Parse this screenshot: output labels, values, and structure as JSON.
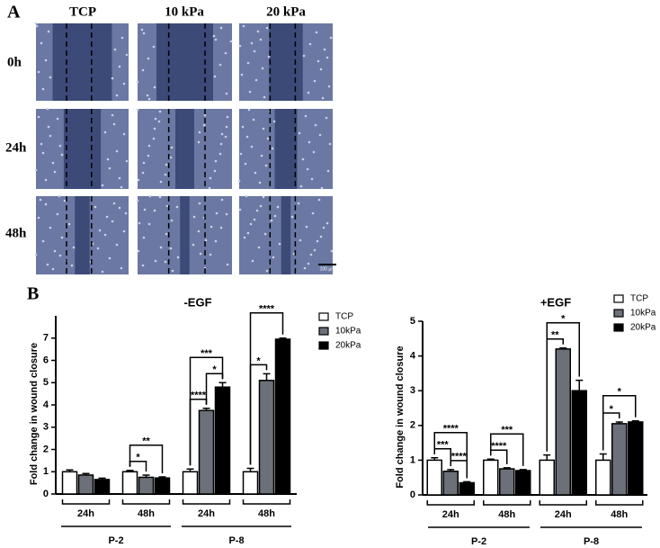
{
  "panel_a": {
    "label": "A",
    "columns": [
      "TCP",
      "10 kPa",
      "20 kPa"
    ],
    "rows": [
      "0h",
      "24h",
      "48h"
    ],
    "scale_bar": "100 µm"
  },
  "panel_b": {
    "label": "B"
  },
  "chart_data": [
    {
      "type": "bar",
      "title": "-EGF",
      "y_label": "Fold change in wound closure",
      "categories": [
        "24h",
        "48h",
        "24h",
        "48h"
      ],
      "groups": [
        "P-2",
        "P-8"
      ],
      "series": [
        {
          "name": "TCP",
          "color": "#ffffff",
          "values": [
            1,
            1,
            1,
            1
          ],
          "errors": [
            0.08,
            0.06,
            0.12,
            0.15
          ]
        },
        {
          "name": "10kPa",
          "color": "#6b7079",
          "values": [
            0.85,
            0.75,
            3.75,
            5.1
          ],
          "errors": [
            0.07,
            0.1,
            0.1,
            0.3
          ]
        },
        {
          "name": "20kPa",
          "color": "#000000",
          "values": [
            0.65,
            0.72,
            4.8,
            6.95
          ],
          "errors": [
            0.06,
            0.05,
            0.2,
            0.05
          ]
        }
      ],
      "ylim": [
        0,
        8
      ],
      "yticks": [
        0,
        1,
        2,
        3,
        4,
        5,
        6,
        7
      ],
      "annotations": [
        "*",
        "**",
        "****",
        "*",
        "***",
        "*",
        "****"
      ]
    },
    {
      "type": "bar",
      "title": "+EGF",
      "y_label": "Fold change in wound closure",
      "categories": [
        "24h",
        "48h",
        "24h",
        "48h"
      ],
      "groups": [
        "P-2",
        "P-8"
      ],
      "series": [
        {
          "name": "TCP",
          "color": "#ffffff",
          "values": [
            1,
            1,
            1,
            1
          ],
          "errors": [
            0.07,
            0.03,
            0.15,
            0.18
          ]
        },
        {
          "name": "10kPa",
          "color": "#6b7079",
          "values": [
            0.68,
            0.75,
            4.2,
            2.05
          ],
          "errors": [
            0.05,
            0.03,
            0.03,
            0.05
          ]
        },
        {
          "name": "20kPa",
          "color": "#000000",
          "values": [
            0.35,
            0.7,
            3,
            2.1
          ],
          "errors": [
            0.03,
            0.03,
            0.3,
            0.03
          ]
        }
      ],
      "ylim": [
        0,
        5
      ],
      "yticks": [
        0,
        1,
        2,
        3,
        4,
        5
      ],
      "annotations": [
        "***",
        "****",
        "****",
        "****",
        "***",
        "**",
        "*",
        "*",
        "*"
      ]
    }
  ]
}
